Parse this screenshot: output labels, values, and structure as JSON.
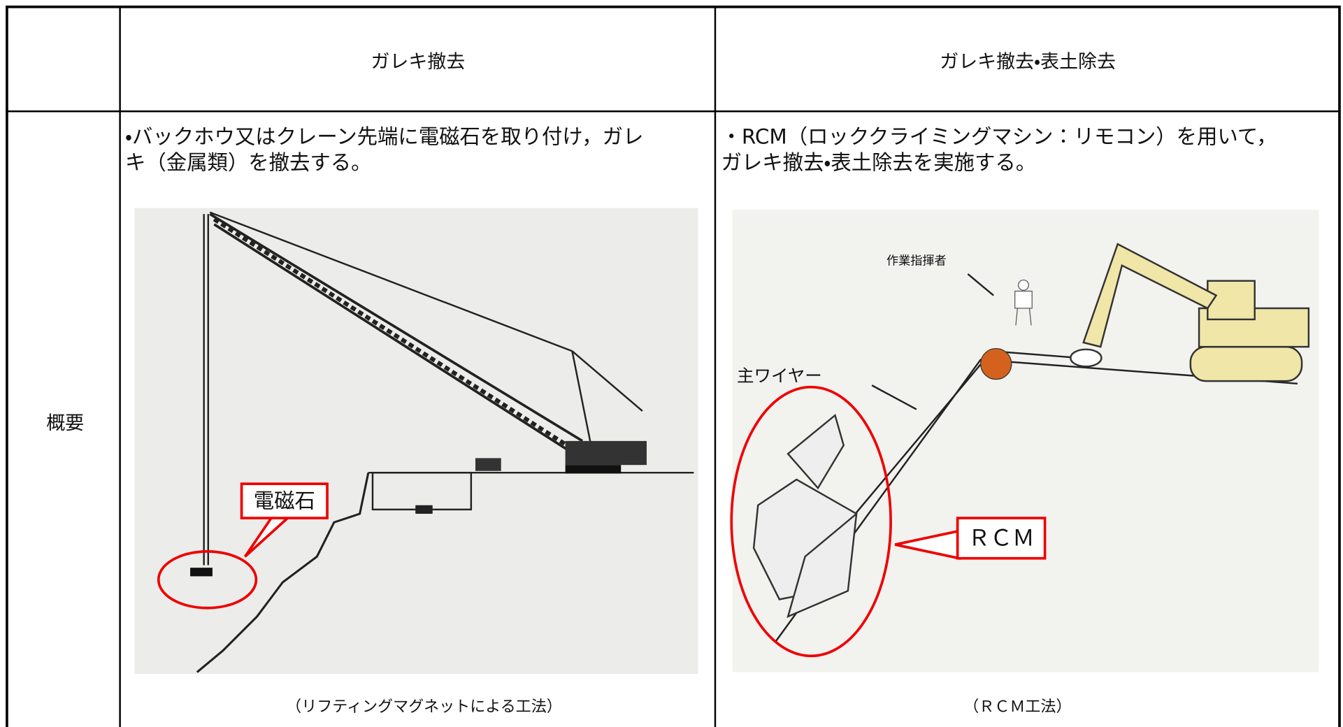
{
  "table": {
    "header": [
      "",
      "ガレキ撤去",
      "ガレキ撤去・表土除去"
    ],
    "rows": [
      {
        "label": "概要",
        "cells": [
          {
            "lines": [
              "・バックホウ又はクレーン先端に電磁石を取り付け，ガレ",
              "キ（金属類）を撤去する。"
            ],
            "callout": "電磁石",
            "caption": "（リフティングマグネットによる工法）"
          },
          {
            "lines": [
              "・RCM（ロッククライミングマシン：リモコン）を用いて，",
              "ガレキ撤去・表土除去を実施する。"
            ],
            "labels": [
              "作業指揮者",
              "主ワイヤー"
            ],
            "callout": "ＲＣＭ",
            "caption": "（ＲＣＭ工法）"
          }
        ]
      }
    ]
  }
}
